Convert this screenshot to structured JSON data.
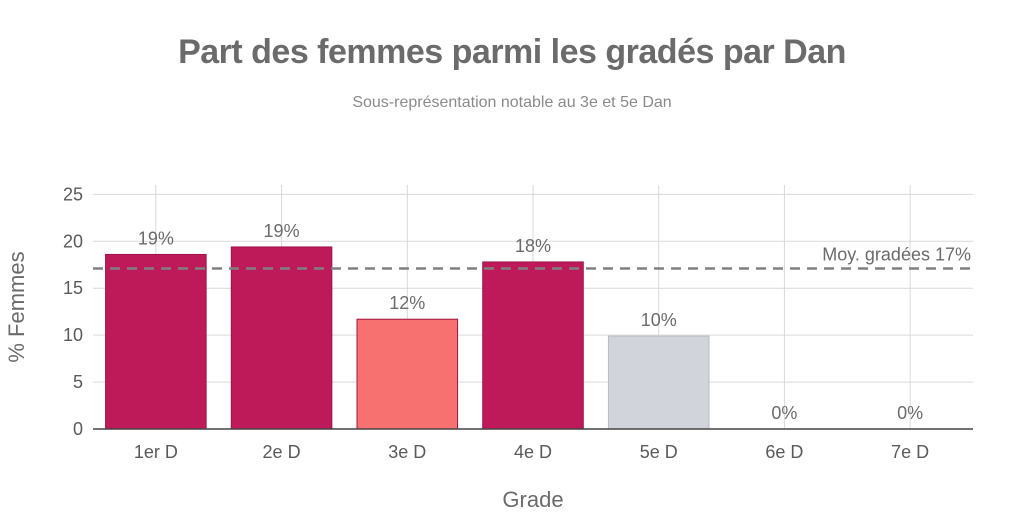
{
  "chart_data": {
    "type": "bar",
    "title": "Part des femmes parmi les gradés par Dan",
    "subtitle": "Sous-représentation notable au 3e et 5e Dan",
    "xlabel": "Grade",
    "ylabel": "% Femmes",
    "ylim": [
      0,
      26
    ],
    "yticks": [
      0,
      5,
      10,
      15,
      20,
      25
    ],
    "grid": true,
    "categories": [
      "1er D",
      "2e D",
      "3e D",
      "4e D",
      "5e D",
      "6e D",
      "7e D"
    ],
    "values": [
      18.6,
      19.4,
      11.7,
      17.8,
      9.9,
      0,
      0
    ],
    "data_labels": [
      "19%",
      "19%",
      "12%",
      "18%",
      "10%",
      "0%",
      "0%"
    ],
    "bar_colors": [
      "#be1a5a",
      "#be1a5a",
      "#f87171",
      "#be1a5a",
      "#d1d5db",
      "#be1a5a",
      "#be1a5a"
    ],
    "reference_line": {
      "value": 17.1,
      "label": "Moy. gradées 17%",
      "color": "#808080"
    }
  }
}
